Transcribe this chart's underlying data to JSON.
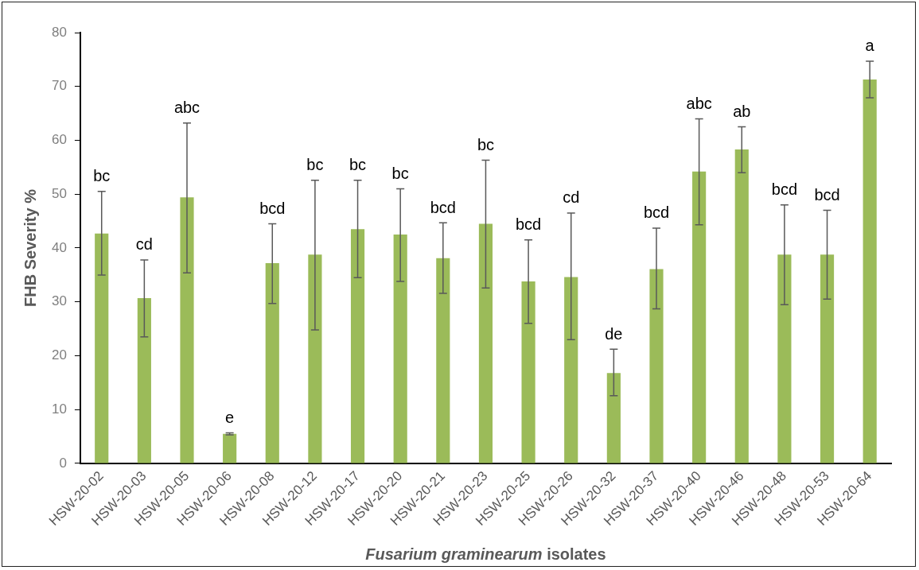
{
  "chart_data": {
    "type": "bar",
    "ylabel": "FHB Severity %",
    "xlabel": "Fusarium graminearum isolates",
    "categories": [
      "HSW-20-02",
      "HSW-20-03",
      "HSW-20-05",
      "HSW-20-06",
      "HSW-20-08",
      "HSW-20-12",
      "HSW-20-17",
      "HSW-20-20",
      "HSW-20-21",
      "HSW-20-23",
      "HSW-20-25",
      "HSW-20-26",
      "HSW-20-32",
      "HSW-20-37",
      "HSW-20-40",
      "HSW-20-46",
      "HSW-20-48",
      "HSW-20-53",
      "HSW-20-64"
    ],
    "values": [
      42.7,
      30.7,
      49.4,
      5.5,
      37.2,
      38.8,
      43.5,
      42.5,
      38.1,
      44.5,
      33.8,
      34.6,
      16.8,
      36.1,
      54.2,
      58.3,
      38.8,
      38.8,
      71.3
    ],
    "errors": [
      [
        35,
        50.5
      ],
      [
        23.5,
        37.8
      ],
      [
        35.4,
        63.2
      ],
      [
        5.3,
        5.7
      ],
      [
        29.7,
        44.5
      ],
      [
        24.8,
        52.6
      ],
      [
        34.5,
        52.6
      ],
      [
        33.8,
        51
      ],
      [
        31.6,
        44.7
      ],
      [
        32.6,
        56.3
      ],
      [
        26,
        41.5
      ],
      [
        23,
        46.5
      ],
      [
        12.6,
        21.2
      ],
      [
        28.7,
        43.7
      ],
      [
        44.3,
        64
      ],
      [
        54,
        62.5
      ],
      [
        29.5,
        48
      ],
      [
        30.5,
        47
      ],
      [
        67.9,
        74.7
      ]
    ],
    "color": "#9bbb59",
    "ylim": [
      0,
      80
    ],
    "yticks": [
      0,
      10,
      20,
      30,
      40,
      50,
      60,
      70,
      80
    ],
    "grid": false,
    "legend": false,
    "annotations": [
      {
        "text": "bc",
        "x": "HSW-20-02",
        "y": 50.5
      },
      {
        "text": "cd",
        "x": "HSW-20-03",
        "y": 37.8
      },
      {
        "text": "abc",
        "x": "HSW-20-05",
        "y": 63.2
      },
      {
        "text": "e",
        "x": "HSW-20-06",
        "y": 5.7
      },
      {
        "text": "bcd",
        "x": "HSW-20-08",
        "y": 44.5
      },
      {
        "text": "bc",
        "x": "HSW-20-12",
        "y": 52.6
      },
      {
        "text": "bc",
        "x": "HSW-20-17",
        "y": 52.6
      },
      {
        "text": "bc",
        "x": "HSW-20-20",
        "y": 51
      },
      {
        "text": "bcd",
        "x": "HSW-20-21",
        "y": 44.7
      },
      {
        "text": "bc",
        "x": "HSW-20-23",
        "y": 56.3
      },
      {
        "text": "bcd",
        "x": "HSW-20-25",
        "y": 41.5
      },
      {
        "text": "cd",
        "x": "HSW-20-26",
        "y": 46.5
      },
      {
        "text": "de",
        "x": "HSW-20-32",
        "y": 21.2
      },
      {
        "text": "bcd",
        "x": "HSW-20-37",
        "y": 43.7
      },
      {
        "text": "abc",
        "x": "HSW-20-40",
        "y": 64
      },
      {
        "text": "ab",
        "x": "HSW-20-46",
        "y": 62.5
      },
      {
        "text": "bcd",
        "x": "HSW-20-48",
        "y": 48
      },
      {
        "text": "bcd",
        "x": "HSW-20-53",
        "y": 47
      },
      {
        "text": "a",
        "x": "HSW-20-64",
        "y": 74.7
      }
    ]
  }
}
